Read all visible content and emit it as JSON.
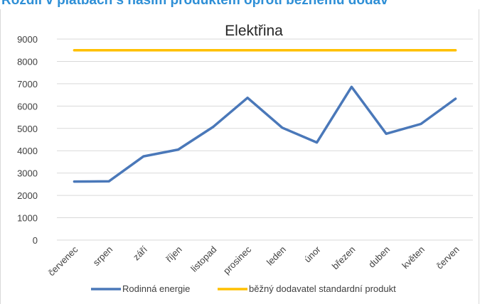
{
  "banner_text": "Rozdíl v platbách s naším produktem oproti běžnému dodav",
  "colors": {
    "banner": "#2e8fd6",
    "series_rodinna": "#4a78b9",
    "series_bezny": "#ffc000",
    "grid": "#d9d9d9",
    "axis_text": "#404040",
    "title": "#262626"
  },
  "chart_data": {
    "type": "line",
    "title": "Elektřina",
    "xlabel": "",
    "ylabel": "",
    "ylim": [
      0,
      9000
    ],
    "yticks": [
      "0",
      "1000",
      "2000",
      "3000",
      "4000",
      "5000",
      "6000",
      "7000",
      "8000",
      "9000"
    ],
    "grid": true,
    "legend_position": "bottom",
    "categories": [
      "červenec",
      "srpen",
      "září",
      "říjen",
      "listopad",
      "prosinec",
      "leden",
      "únor",
      "březen",
      "duben",
      "květen",
      "červen"
    ],
    "series": [
      {
        "name": "Rodinná energie",
        "color": "#4a78b9",
        "values": [
          2620,
          2630,
          3750,
          4050,
          5060,
          6370,
          5030,
          4370,
          6860,
          4760,
          5200,
          6330
        ]
      },
      {
        "name": "běžný dodavatel standardní produkt",
        "color": "#ffc000",
        "values": [
          8500,
          8500,
          8500,
          8500,
          8500,
          8500,
          8500,
          8500,
          8500,
          8500,
          8500,
          8500
        ]
      }
    ]
  }
}
